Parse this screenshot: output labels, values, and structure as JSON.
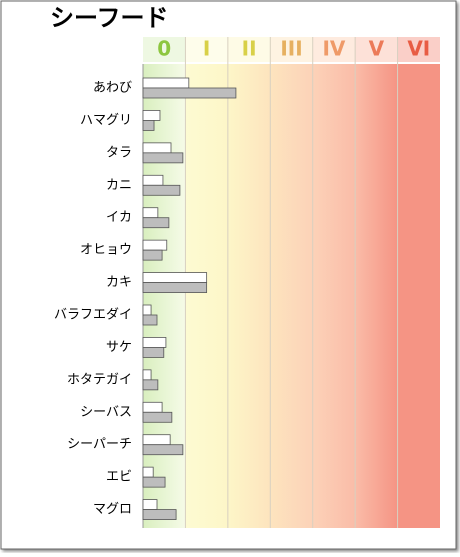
{
  "chart_data": {
    "type": "hbar",
    "title": "シーフード",
    "categories": [
      "あわび",
      "ハマグリ",
      "タラ",
      "カニ",
      "イカ",
      "オヒョウ",
      "カキ",
      "バラフエダイ",
      "サケ",
      "ホタテガイ",
      "シーバス",
      "シーパーチ",
      "エビ",
      "マグロ"
    ],
    "series": [
      {
        "color": "#ffffff",
        "values": [
          1.08,
          0.4,
          0.66,
          0.47,
          0.35,
          0.56,
          1.5,
          0.19,
          0.54,
          0.19,
          0.45,
          0.64,
          0.24,
          0.33
        ]
      },
      {
        "color": "#bdbdbd",
        "values": [
          2.19,
          0.26,
          0.94,
          0.87,
          0.61,
          0.45,
          1.5,
          0.33,
          0.49,
          0.35,
          0.68,
          0.94,
          0.52,
          0.78
        ]
      }
    ],
    "xlim": [
      0,
      7
    ],
    "xticks": [
      {
        "value": 0.5,
        "label": "0"
      },
      {
        "value": 1.5,
        "label": "I"
      },
      {
        "value": 2.5,
        "label": "II"
      },
      {
        "value": 3.5,
        "label": "III"
      },
      {
        "value": 4.5,
        "label": "IV"
      },
      {
        "value": 5.5,
        "label": "V"
      },
      {
        "value": 6.5,
        "label": "VI"
      }
    ],
    "tick_colors": [
      "#8dc63f",
      "#d8d048",
      "#d8d048",
      "#e6b060",
      "#ef9a68",
      "#ec7a58",
      "#e85c44"
    ],
    "band_colors": [
      "#d9efbf",
      "#fdfbd2",
      "#fdf6c8",
      "#fde4be",
      "#fcd2b8",
      "#fabca8",
      "#f59484"
    ]
  }
}
